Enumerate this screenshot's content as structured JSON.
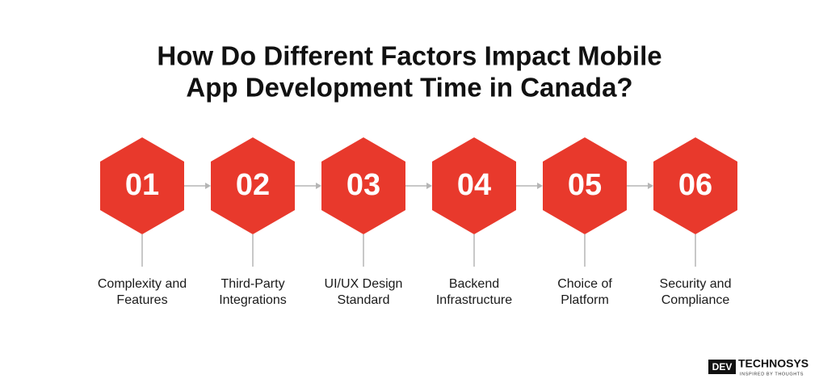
{
  "title": [
    "How Do Different Factors Impact Mobile",
    "App Development Time in Canada?"
  ],
  "steps": [
    {
      "number": "01",
      "label": [
        "Complexity and",
        "Features"
      ]
    },
    {
      "number": "02",
      "label": [
        "Third-Party",
        "Integrations"
      ]
    },
    {
      "number": "03",
      "label": [
        "UI/UX Design",
        "Standard"
      ]
    },
    {
      "number": "04",
      "label": [
        "Backend",
        "Infrastructure"
      ]
    },
    {
      "number": "05",
      "label": [
        "Choice of",
        "Platform"
      ]
    },
    {
      "number": "06",
      "label": [
        "Security and",
        "Compliance"
      ]
    }
  ],
  "logo": {
    "brand": "DEV",
    "name": "TECHNOSYS",
    "tagline": "INSPIRED BY THOUGHTS"
  }
}
